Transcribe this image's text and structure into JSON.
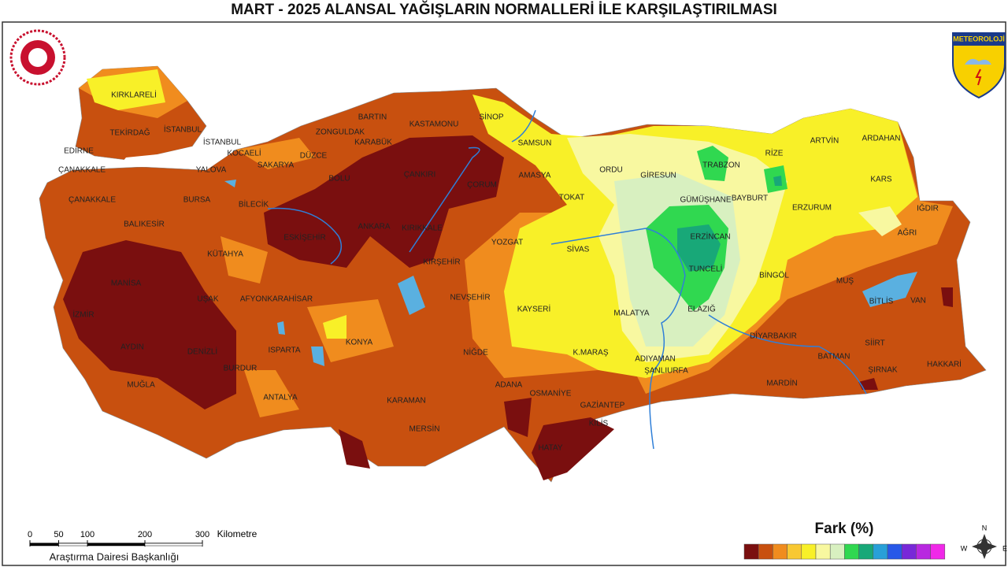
{
  "title": "MART - 2025 ALANSAL YAĞIŞLARIN NORMALLERİ İLE KARŞILAŞTIRILMASI",
  "logo_text": "METEOROLOJİ",
  "cities": [
    "KIRKLARELİ",
    "TEKİRDAĞ",
    "İSTANBUL",
    "EDİRNE",
    "İSTANBUL",
    "KOCAELİ",
    "ÇANAKKALE",
    "YALOVA",
    "SAKARYA",
    "DÜZCE",
    "ZONGULDAK",
    "BARTIN",
    "KASTAMONU",
    "KARABÜK",
    "SİNOP",
    "SAMSUN",
    "ÇANKIRI",
    "ÇORUM",
    "BOLU",
    "ÇANAKKALE",
    "BURSA",
    "BİLECİK",
    "AMASYA",
    "TOKAT",
    "ORDU",
    "GİRESUN",
    "TRABZON",
    "RİZE",
    "ARTVİN",
    "ARDAHAN",
    "KARS",
    "GÜMÜŞHANE",
    "BAYBURT",
    "ERZURUM",
    "IĞDIR",
    "AĞRI",
    "BALIKESİR",
    "ESKİŞEHİR",
    "ANKARA",
    "KIRIKKALE",
    "YOZGAT",
    "SİVAS",
    "ERZİNCAN",
    "KÜTAHYA",
    "KIRŞEHİR",
    "TUNCELİ",
    "BİNGÖL",
    "MUŞ",
    "MANİSA",
    "UŞAK",
    "AFYONKARAHİSAR",
    "NEVŞEHİR",
    "BİTLİS",
    "VAN",
    "İZMİR",
    "KAYSERİ",
    "MALATYA",
    "ELAZIĞ",
    "AYDIN",
    "DENİZLİ",
    "ISPARTA",
    "KONYA",
    "NİĞDE",
    "K.MARAŞ",
    "DİYARBAKIR",
    "SİİRT",
    "HAKKARİ",
    "BATMAN",
    "ADIYAMAN",
    "ŞIRNAK",
    "BURDUR",
    "MUĞLA",
    "ADANA",
    "OSMANİYE",
    "ŞANLIURFA",
    "MARDİN",
    "ANTALYA",
    "KARAMAN",
    "GAZİANTEP",
    "KİLİS",
    "MERSİN",
    "HATAY"
  ],
  "scale": {
    "ticks": [
      0,
      50,
      100,
      200,
      300
    ],
    "unit": "Kilometre",
    "credit": "Araştırma Dairesi Başkanlığı"
  },
  "legend": {
    "title": "Fark (%)",
    "colors": [
      "#7a0f0f",
      "#c8500f",
      "#f08c1e",
      "#f8c832",
      "#f8f028",
      "#f8f8a0",
      "#d8f0c0",
      "#30d850",
      "#18a878",
      "#28a0d8",
      "#2858e8",
      "#7828d8",
      "#b828e0",
      "#f028e8"
    ]
  },
  "compass": {
    "n": "N",
    "w": "W",
    "e": "E"
  }
}
